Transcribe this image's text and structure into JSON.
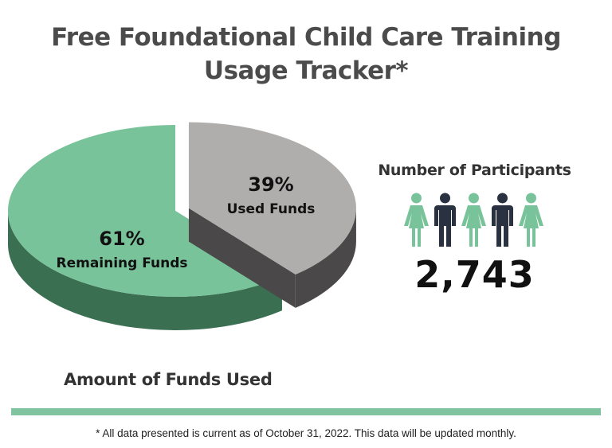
{
  "title": {
    "line1": "Free Foundational Child Care Training",
    "line2": "Usage Tracker*"
  },
  "colors": {
    "remaining_top": "#79c39a",
    "remaining_side": "#3b6f52",
    "used_top": "#b0adad",
    "used_side": "#4a4848",
    "person_female": "#79c39a",
    "person_male": "#2a3140",
    "divider": "#7fc49e"
  },
  "chart_data": {
    "type": "pie",
    "title": "Amount of Funds Used",
    "slices": [
      {
        "label": "Remaining Funds",
        "value": 61,
        "display": "61%",
        "color": "#79c39a"
      },
      {
        "label": "Used Funds",
        "value": 39,
        "display": "39%",
        "color": "#b0adad"
      }
    ],
    "exploded": "Used Funds"
  },
  "participants": {
    "title": "Number of Participants",
    "count": "2,743",
    "icons": [
      "female-person-icon",
      "male-person-icon",
      "female-person-icon",
      "male-person-icon",
      "female-person-icon"
    ]
  },
  "footnote": "* All data presented is current as of October 31, 2022. This data will be updated monthly."
}
